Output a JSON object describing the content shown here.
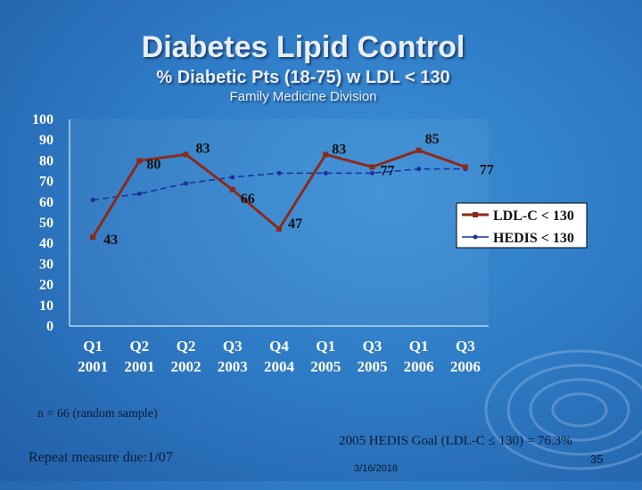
{
  "slide": {
    "title": "Diabetes Lipid Control",
    "subtitle": "% Diabetic Pts (18-75) w LDL < 130",
    "division": "Family Medicine Division",
    "n_note": "n = 66 (random sample)",
    "repeat_note": "Repeat measure due:1/07",
    "goal_note": "2005 HEDIS Goal (LDL-C ≤ 130) = 76.3%",
    "date": "3/16/2018",
    "page_number": "35"
  },
  "chart_data": {
    "type": "line",
    "categories": [
      [
        "Q1",
        "2001"
      ],
      [
        "Q2",
        "2001"
      ],
      [
        "Q2",
        "2002"
      ],
      [
        "Q3",
        "2003"
      ],
      [
        "Q4",
        "2004"
      ],
      [
        "Q1",
        "2005"
      ],
      [
        "Q3",
        "2005"
      ],
      [
        "Q1",
        "2006"
      ],
      [
        "Q3",
        "2006"
      ]
    ],
    "ylim": [
      0,
      100
    ],
    "yticks": [
      0,
      10,
      20,
      30,
      40,
      50,
      60,
      70,
      80,
      90,
      100
    ],
    "legend_position": "right",
    "series": [
      {
        "name": "LDL-C < 130",
        "color": "#8b2a1a",
        "values": [
          43,
          80,
          83,
          66,
          47,
          83,
          77,
          85,
          77
        ],
        "labels": [
          "43",
          "80",
          "83",
          "66",
          "47",
          "83",
          "77",
          "85",
          "77"
        ]
      },
      {
        "name": "HEDIS < 130",
        "color": "#1a2fa0",
        "values": [
          61,
          64,
          69,
          72,
          74,
          74,
          74,
          76,
          76
        ]
      }
    ]
  }
}
